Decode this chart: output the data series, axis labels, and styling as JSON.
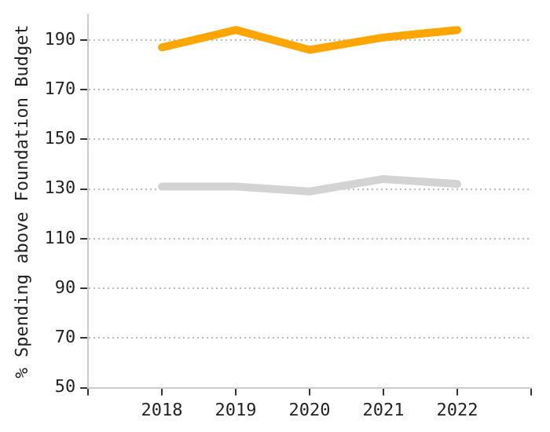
{
  "chart_data": {
    "type": "line",
    "ylabel": "% Spending above Foundation Budget",
    "x": [
      2018,
      2019,
      2020,
      2021,
      2022
    ],
    "series": [
      {
        "color": "#ffa500",
        "values": [
          187,
          194,
          186,
          191,
          194
        ]
      },
      {
        "color": "#d3d3d3",
        "values": [
          131,
          131,
          129,
          134,
          132
        ]
      }
    ],
    "xlim": [
      2017,
      2023
    ],
    "xticks": [
      {
        "value": 2017,
        "label": null
      },
      2018,
      2019,
      2020,
      2021,
      2022,
      {
        "value": 2023,
        "label": null
      }
    ],
    "ylim": [
      50,
      200
    ],
    "yticks": [
      50,
      70,
      90,
      110,
      130,
      150,
      170,
      190
    ],
    "grid": "y",
    "legend": false,
    "marker": "none",
    "line_style": "solid"
  }
}
